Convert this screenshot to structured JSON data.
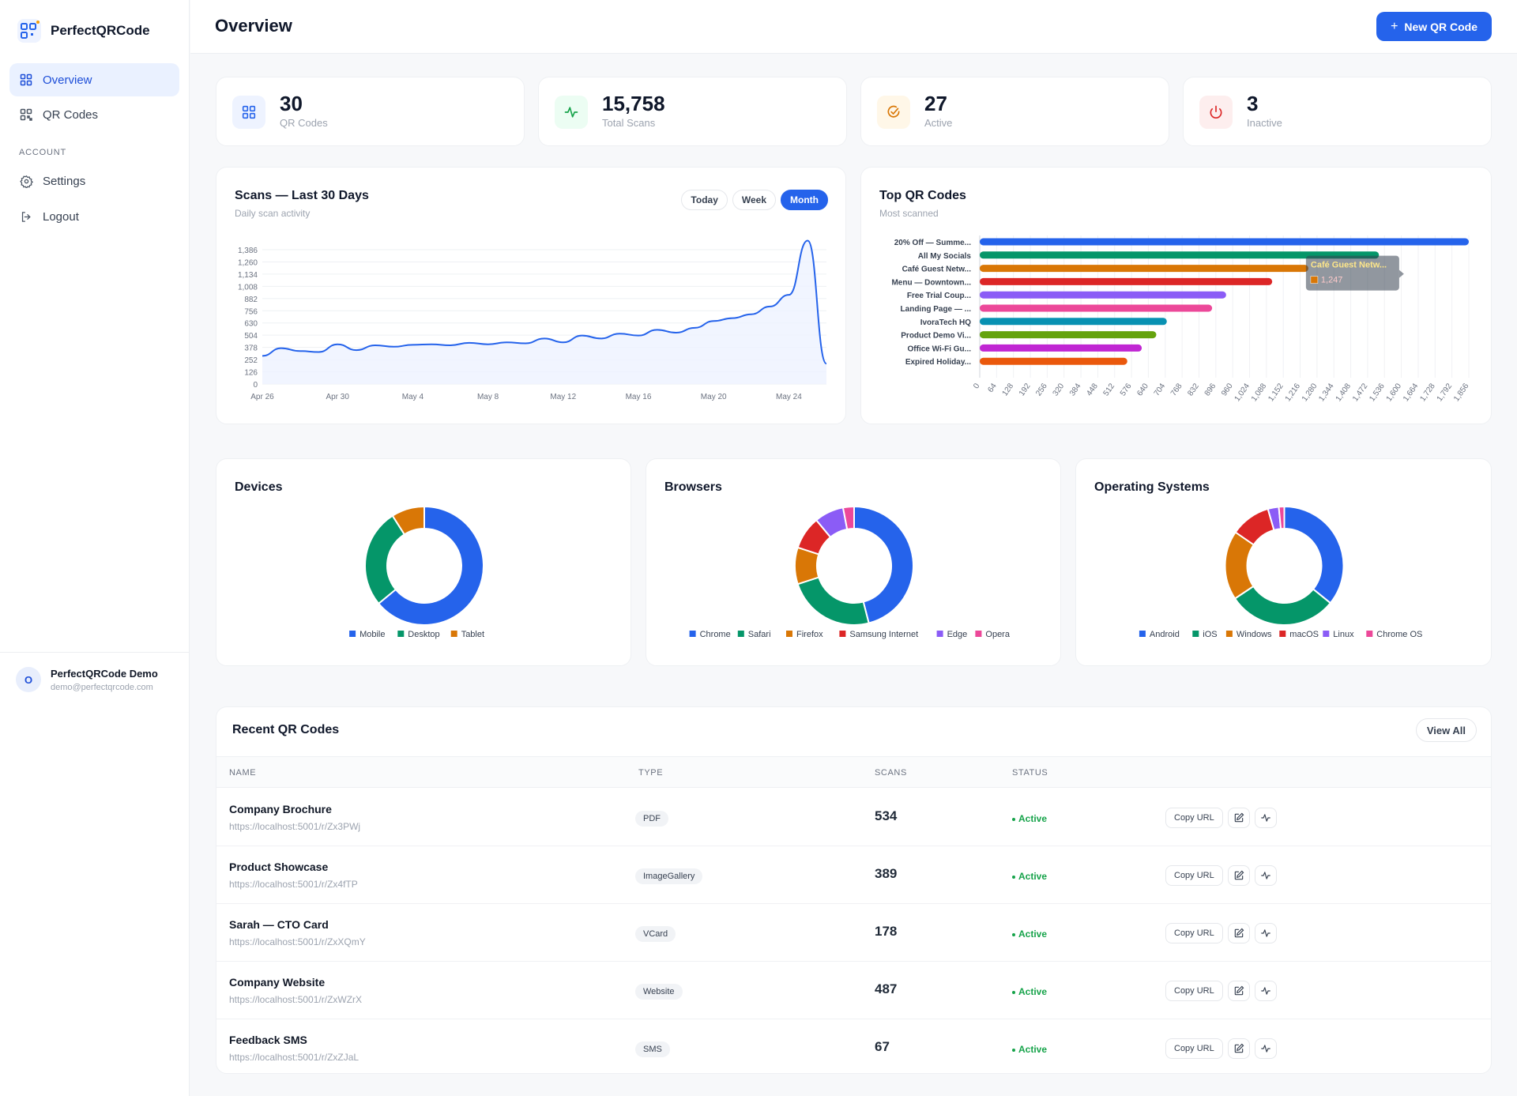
{
  "app": {
    "name": "PerfectQRCode"
  },
  "sidebar": {
    "items": [
      {
        "label": "Overview",
        "icon": "grid-icon"
      },
      {
        "label": "QR Codes",
        "icon": "qr-grid-icon"
      }
    ],
    "section_label": "ACCOUNT",
    "account_items": [
      {
        "label": "Settings",
        "icon": "gear-icon"
      },
      {
        "label": "Logout",
        "icon": "logout-icon"
      }
    ],
    "user": {
      "initial": "O",
      "name": "PerfectQRCode Demo",
      "email": "demo@perfectqrcode.com"
    }
  },
  "header": {
    "title": "Overview",
    "new_button": "New QR Code"
  },
  "stats": [
    {
      "value": "30",
      "label": "QR Codes",
      "color": "#2563eb",
      "bg": "#eef3ff"
    },
    {
      "value": "15,758",
      "label": "Total Scans",
      "color": "#16a34a",
      "bg": "#ecfdf3"
    },
    {
      "value": "27",
      "label": "Active",
      "color": "#d97706",
      "bg": "#fff7e8"
    },
    {
      "value": "3",
      "label": "Inactive",
      "color": "#dc2626",
      "bg": "#fdeeee"
    }
  ],
  "scans_card": {
    "title": "Scans — Last 30 Days",
    "subtitle": "Daily scan activity",
    "tabs": [
      "Today",
      "Week",
      "Month"
    ],
    "active_tab": "Month"
  },
  "top_card": {
    "title": "Top QR Codes",
    "subtitle": "Most scanned",
    "tooltip_title": "Café Guest Netw...",
    "tooltip_value": "1,247"
  },
  "devices_card": {
    "title": "Devices"
  },
  "browsers_card": {
    "title": "Browsers"
  },
  "os_card": {
    "title": "Operating Systems"
  },
  "chart_data": [
    {
      "type": "line",
      "title": "Scans — Last 30 Days",
      "x_ticks": [
        "Apr 26",
        "Apr 30",
        "May 4",
        "May 8",
        "May 12",
        "May 16",
        "May 20",
        "May 24"
      ],
      "y_ticks": [
        0,
        126,
        252,
        378,
        504,
        630,
        756,
        882,
        1008,
        1134,
        1260,
        1386
      ],
      "ylim": [
        0,
        1386
      ],
      "x": [
        "Apr 26",
        "Apr 27",
        "Apr 28",
        "Apr 29",
        "Apr 30",
        "May 1",
        "May 2",
        "May 3",
        "May 4",
        "May 5",
        "May 6",
        "May 7",
        "May 8",
        "May 9",
        "May 10",
        "May 11",
        "May 12",
        "May 13",
        "May 14",
        "May 15",
        "May 16",
        "May 17",
        "May 18",
        "May 19",
        "May 20",
        "May 21",
        "May 22",
        "May 23",
        "May 24",
        "May 25",
        "May 26"
      ],
      "values": [
        290,
        370,
        340,
        330,
        410,
        350,
        400,
        385,
        405,
        410,
        400,
        425,
        410,
        430,
        420,
        470,
        430,
        500,
        470,
        520,
        500,
        560,
        530,
        580,
        650,
        680,
        720,
        800,
        920,
        1480,
        210
      ],
      "grid": true
    },
    {
      "type": "bar",
      "orientation": "horizontal",
      "title": "Top QR Codes",
      "categories": [
        "20% Off — Summe...",
        "All My Socials",
        "Café Guest Netw...",
        "Menu — Downtown...",
        "Free Trial Coup...",
        "Landing Page — ...",
        "IvoraTech HQ",
        "Product Demo Vi...",
        "Office Wi-Fi Gu...",
        "Expired Holiday..."
      ],
      "values": [
        1856,
        1515,
        1247,
        1110,
        935,
        882,
        710,
        670,
        615,
        560
      ],
      "colors": [
        "#2563eb",
        "#059669",
        "#d97706",
        "#dc2626",
        "#8b5cf6",
        "#ec4899",
        "#0891b2",
        "#65a30d",
        "#c026d3",
        "#ea580c"
      ],
      "x_ticks": [
        0,
        64,
        128,
        192,
        256,
        320,
        384,
        448,
        512,
        576,
        640,
        704,
        768,
        832,
        896,
        960,
        1024,
        1088,
        1152,
        1216,
        1280,
        1344,
        1408,
        1472,
        1536,
        1600,
        1664,
        1728,
        1792,
        1856
      ],
      "xlim": [
        0,
        1856
      ],
      "grid": true
    },
    {
      "type": "pie",
      "title": "Devices",
      "categories": [
        "Mobile",
        "Desktop",
        "Tablet"
      ],
      "values": [
        64,
        27,
        9
      ],
      "colors": [
        "#2563eb",
        "#059669",
        "#d97706"
      ],
      "legend": "bottom"
    },
    {
      "type": "pie",
      "title": "Browsers",
      "categories": [
        "Chrome",
        "Safari",
        "Firefox",
        "Samsung Internet",
        "Edge",
        "Opera"
      ],
      "values": [
        46,
        24,
        10,
        9,
        8,
        3
      ],
      "colors": [
        "#2563eb",
        "#059669",
        "#d97706",
        "#dc2626",
        "#8b5cf6",
        "#ec4899"
      ],
      "legend": "bottom"
    },
    {
      "type": "pie",
      "title": "Operating Systems",
      "categories": [
        "Android",
        "iOS",
        "Windows",
        "macOS",
        "Linux",
        "Chrome OS"
      ],
      "values": [
        36,
        30,
        19,
        11,
        3,
        1.5
      ],
      "colors": [
        "#2563eb",
        "#059669",
        "#d97706",
        "#dc2626",
        "#8b5cf6",
        "#ec4899"
      ],
      "legend": "bottom"
    }
  ],
  "recent": {
    "title": "Recent QR Codes",
    "view_all": "View All",
    "columns": [
      "NAME",
      "TYPE",
      "SCANS",
      "STATUS"
    ],
    "copy_label": "Copy URL",
    "rows": [
      {
        "name": "Company Brochure",
        "url": "https://localhost:5001/r/Zx3PWj",
        "type": "PDF",
        "scans": "534",
        "status": "Active"
      },
      {
        "name": "Product Showcase",
        "url": "https://localhost:5001/r/Zx4fTP",
        "type": "ImageGallery",
        "scans": "389",
        "status": "Active"
      },
      {
        "name": "Sarah — CTO Card",
        "url": "https://localhost:5001/r/ZxXQmY",
        "type": "VCard",
        "scans": "178",
        "status": "Active"
      },
      {
        "name": "Company Website",
        "url": "https://localhost:5001/r/ZxWZrX",
        "type": "Website",
        "scans": "487",
        "status": "Active"
      },
      {
        "name": "Feedback SMS",
        "url": "https://localhost:5001/r/ZxZJaL",
        "type": "SMS",
        "scans": "67",
        "status": "Active"
      }
    ]
  }
}
